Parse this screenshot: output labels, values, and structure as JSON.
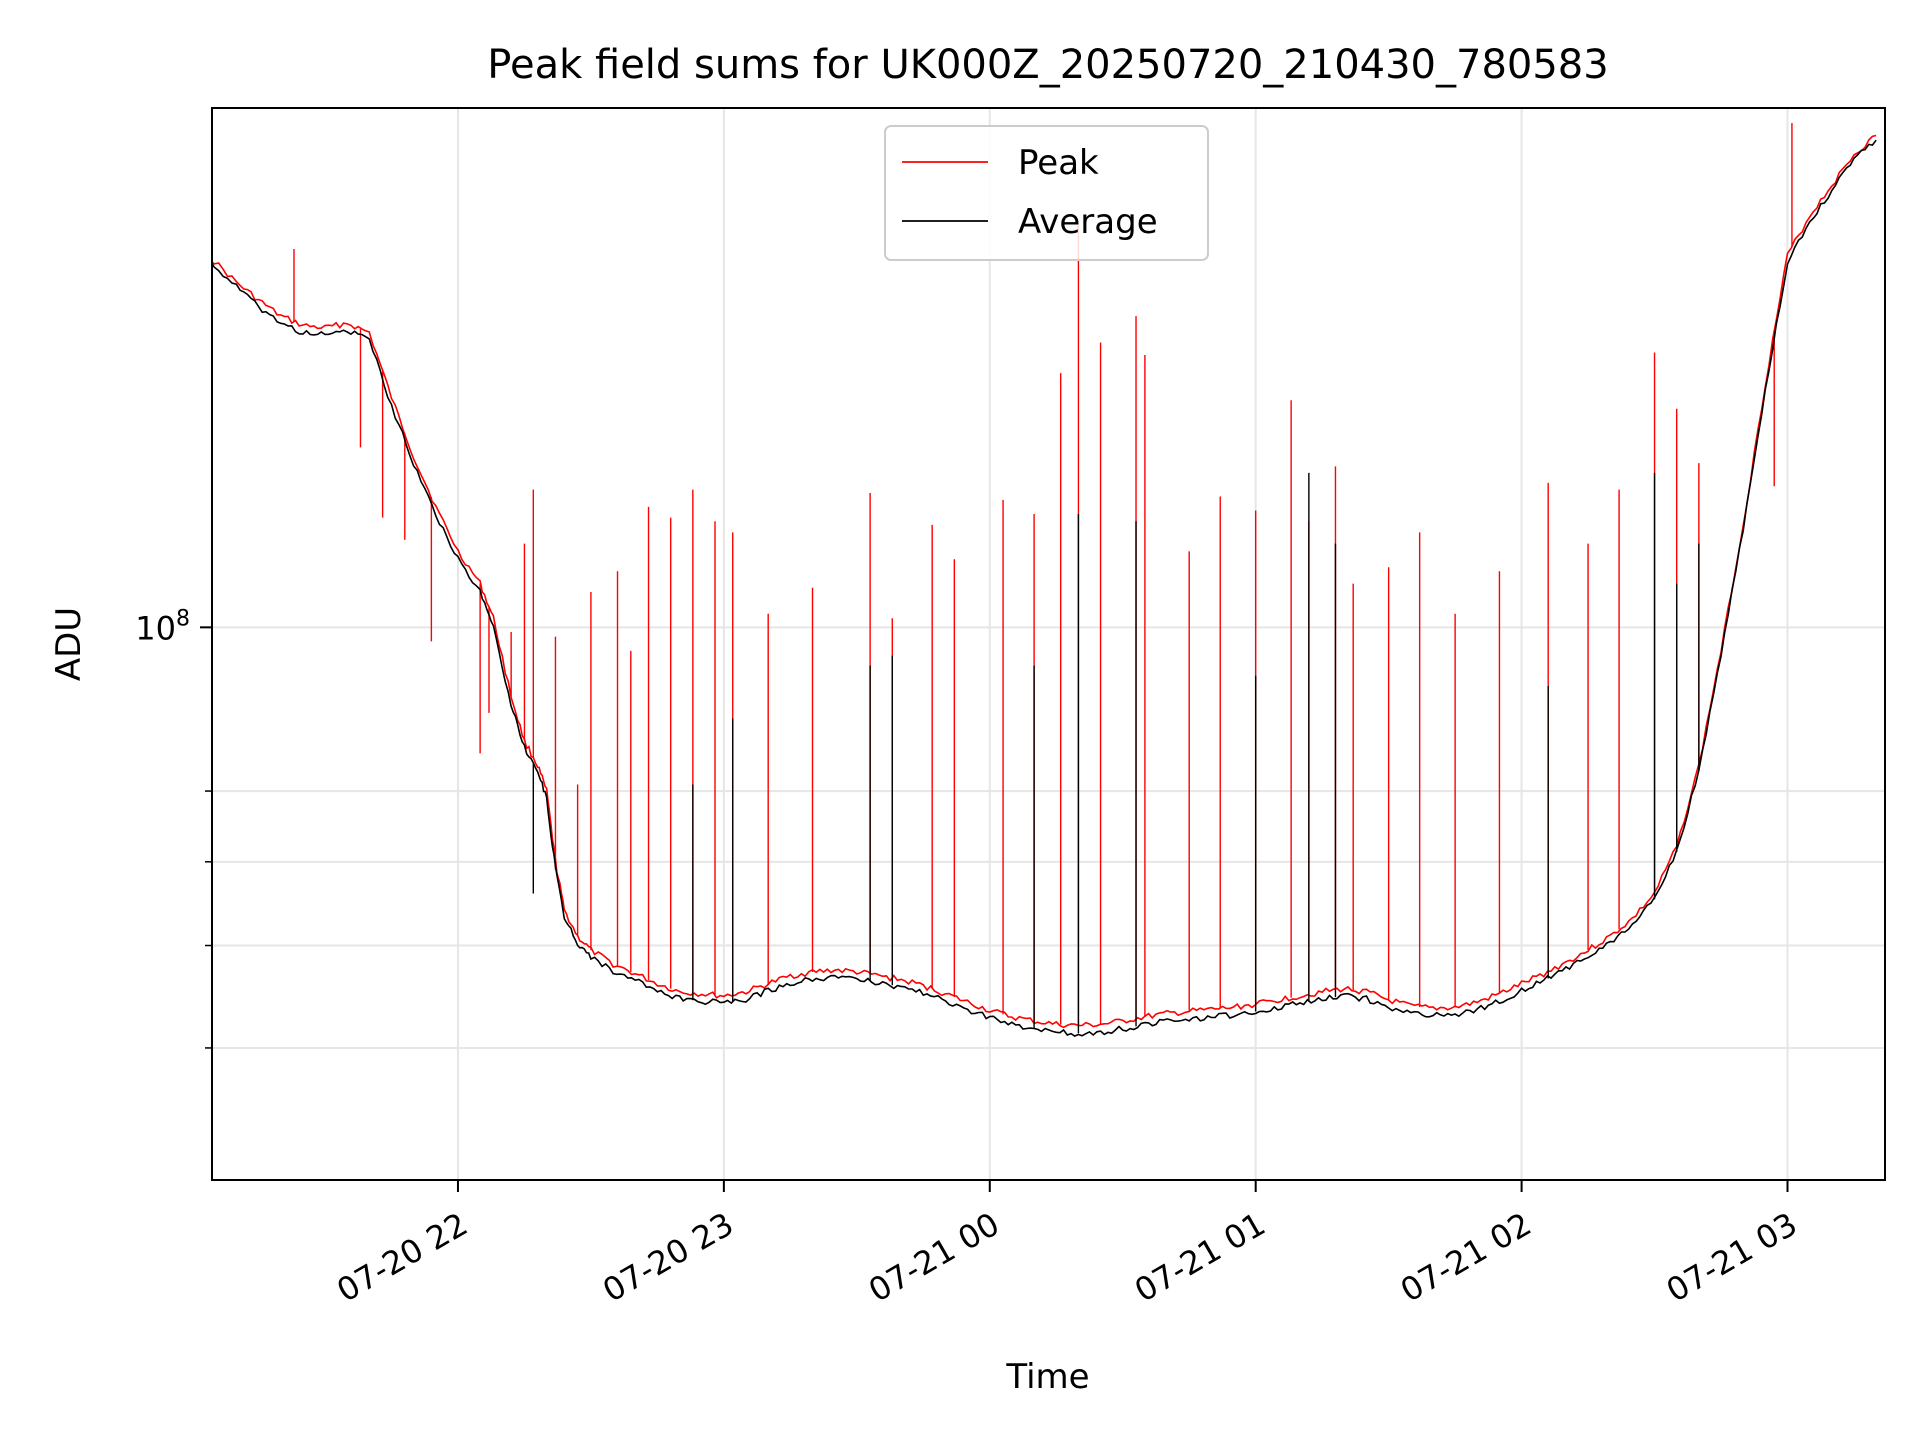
{
  "chart_data": {
    "type": "line",
    "title": "Peak field sums for UK000Z_20250720_210430_780583",
    "xlabel": "Time",
    "ylabel": "ADU",
    "y_scale": "log",
    "x_range": [
      "2025-07-20 21:04:30",
      "2025-07-21 03:22"
    ],
    "ylim_approx": [
      30000000,
      310000000
    ],
    "x_ticks": [
      "07-20 22",
      "07-20 23",
      "07-21 00",
      "07-21 01",
      "07-21 02",
      "07-21 03"
    ],
    "x_tick_times": [
      "2025-07-20 22:00",
      "2025-07-20 23:00",
      "2025-07-21 00:00",
      "2025-07-21 01:00",
      "2025-07-21 02:00",
      "2025-07-21 03:00"
    ],
    "y_major_tick": {
      "label": "10",
      "exponent": "8",
      "value": 100000000
    },
    "y_minor_ticks": [
      40000000,
      50000000,
      60000000,
      70000000
    ],
    "grid": true,
    "legend": {
      "placement": "top-center",
      "entries": [
        "Peak",
        "Average"
      ]
    },
    "series": [
      {
        "name": "Peak",
        "color": "#ff0000",
        "points": [
          [
            "2025-07-20 21:04",
            224000000
          ],
          [
            "2025-07-20 21:10",
            212000000
          ],
          [
            "2025-07-20 21:15",
            204000000
          ],
          [
            "2025-07-20 21:20",
            197000000
          ],
          [
            "2025-07-20 21:25",
            193000000
          ],
          [
            "2025-07-20 21:30",
            192000000
          ],
          [
            "2025-07-20 21:35",
            194000000
          ],
          [
            "2025-07-20 21:40",
            190000000
          ],
          [
            "2025-07-20 21:45",
            165000000
          ],
          [
            "2025-07-20 21:50",
            145000000
          ],
          [
            "2025-07-20 21:55",
            130000000
          ],
          [
            "2025-07-20 22:00",
            118000000
          ],
          [
            "2025-07-20 22:05",
            110000000
          ],
          [
            "2025-07-20 22:08",
            102000000
          ],
          [
            "2025-07-20 22:12",
            86000000
          ],
          [
            "2025-07-20 22:15",
            78000000
          ],
          [
            "2025-07-20 22:18",
            74000000
          ],
          [
            "2025-07-20 22:20",
            70000000
          ],
          [
            "2025-07-20 22:22",
            60000000
          ],
          [
            "2025-07-20 22:24",
            54000000
          ],
          [
            "2025-07-20 22:27",
            51000000
          ],
          [
            "2025-07-20 22:30",
            49500000
          ],
          [
            "2025-07-20 22:35",
            48000000
          ],
          [
            "2025-07-20 22:40",
            47000000
          ],
          [
            "2025-07-20 22:45",
            46000000
          ],
          [
            "2025-07-20 22:50",
            45200000
          ],
          [
            "2025-07-20 22:55",
            45000000
          ],
          [
            "2025-07-20 23:00",
            44800000
          ],
          [
            "2025-07-20 23:05",
            45200000
          ],
          [
            "2025-07-20 23:10",
            46000000
          ],
          [
            "2025-07-20 23:15",
            46800000
          ],
          [
            "2025-07-20 23:20",
            47200000
          ],
          [
            "2025-07-20 23:25",
            47400000
          ],
          [
            "2025-07-20 23:30",
            47200000
          ],
          [
            "2025-07-20 23:35",
            46800000
          ],
          [
            "2025-07-20 23:40",
            46400000
          ],
          [
            "2025-07-20 23:45",
            45800000
          ],
          [
            "2025-07-20 23:50",
            45000000
          ],
          [
            "2025-07-20 23:55",
            44200000
          ],
          [
            "2025-07-21 00:00",
            43400000
          ],
          [
            "2025-07-21 00:05",
            42800000
          ],
          [
            "2025-07-21 00:10",
            42400000
          ],
          [
            "2025-07-21 00:15",
            42100000
          ],
          [
            "2025-07-21 00:20",
            42000000
          ],
          [
            "2025-07-21 00:25",
            42100000
          ],
          [
            "2025-07-21 00:30",
            42400000
          ],
          [
            "2025-07-21 00:35",
            42800000
          ],
          [
            "2025-07-21 00:40",
            43100000
          ],
          [
            "2025-07-21 00:45",
            43300000
          ],
          [
            "2025-07-21 00:50",
            43500000
          ],
          [
            "2025-07-21 00:55",
            43700000
          ],
          [
            "2025-07-21 01:00",
            44000000
          ],
          [
            "2025-07-21 01:05",
            44400000
          ],
          [
            "2025-07-21 01:10",
            44800000
          ],
          [
            "2025-07-21 01:15",
            45200000
          ],
          [
            "2025-07-21 01:20",
            45500000
          ],
          [
            "2025-07-21 01:25",
            45200000
          ],
          [
            "2025-07-21 01:30",
            44400000
          ],
          [
            "2025-07-21 01:35",
            43800000
          ],
          [
            "2025-07-21 01:40",
            43600000
          ],
          [
            "2025-07-21 01:45",
            43700000
          ],
          [
            "2025-07-21 01:50",
            44200000
          ],
          [
            "2025-07-21 01:55",
            45000000
          ],
          [
            "2025-07-21 02:00",
            46000000
          ],
          [
            "2025-07-21 02:05",
            47000000
          ],
          [
            "2025-07-21 02:10",
            48200000
          ],
          [
            "2025-07-21 02:15",
            49500000
          ],
          [
            "2025-07-21 02:20",
            51000000
          ],
          [
            "2025-07-21 02:25",
            53000000
          ],
          [
            "2025-07-21 02:30",
            56000000
          ],
          [
            "2025-07-21 02:35",
            62000000
          ],
          [
            "2025-07-21 02:40",
            74000000
          ],
          [
            "2025-07-21 02:45",
            95000000
          ],
          [
            "2025-07-21 02:50",
            125000000
          ],
          [
            "2025-07-21 02:55",
            170000000
          ],
          [
            "2025-07-21 03:00",
            225000000
          ],
          [
            "2025-07-21 03:05",
            245000000
          ],
          [
            "2025-07-21 03:10",
            262000000
          ],
          [
            "2025-07-21 03:15",
            280000000
          ],
          [
            "2025-07-21 03:20",
            292000000
          ]
        ],
        "spikes": [
          [
            "2025-07-20 21:23",
            228000000
          ],
          [
            "2025-07-20 21:38",
            148000000
          ],
          [
            "2025-07-20 21:43",
            127000000
          ],
          [
            "2025-07-20 21:48",
            121000000
          ],
          [
            "2025-07-20 21:54",
            97000000
          ],
          [
            "2025-07-20 22:05",
            76000000
          ],
          [
            "2025-07-20 22:07",
            83000000
          ],
          [
            "2025-07-20 22:12",
            99000000
          ],
          [
            "2025-07-20 22:15",
            120000000
          ],
          [
            "2025-07-20 22:17",
            135000000
          ],
          [
            "2025-07-20 22:22",
            98000000
          ],
          [
            "2025-07-20 22:27",
            71000000
          ],
          [
            "2025-07-20 22:30",
            108000000
          ],
          [
            "2025-07-20 22:36",
            113000000
          ],
          [
            "2025-07-20 22:39",
            95000000
          ],
          [
            "2025-07-20 22:43",
            130000000
          ],
          [
            "2025-07-20 22:48",
            127000000
          ],
          [
            "2025-07-20 22:53",
            135000000
          ],
          [
            "2025-07-20 22:58",
            126000000
          ],
          [
            "2025-07-20 23:02",
            123000000
          ],
          [
            "2025-07-20 23:10",
            103000000
          ],
          [
            "2025-07-20 23:20",
            109000000
          ],
          [
            "2025-07-20 23:33",
            134000000
          ],
          [
            "2025-07-20 23:38",
            102000000
          ],
          [
            "2025-07-20 23:47",
            125000000
          ],
          [
            "2025-07-20 23:52",
            116000000
          ],
          [
            "2025-07-21 00:03",
            132000000
          ],
          [
            "2025-07-21 00:10",
            128000000
          ],
          [
            "2025-07-21 00:16",
            174000000
          ],
          [
            "2025-07-21 00:20",
            240000000
          ],
          [
            "2025-07-21 00:25",
            186000000
          ],
          [
            "2025-07-21 00:33",
            197000000
          ],
          [
            "2025-07-21 00:35",
            181000000
          ],
          [
            "2025-07-21 00:45",
            118000000
          ],
          [
            "2025-07-21 00:52",
            133000000
          ],
          [
            "2025-07-21 01:00",
            129000000
          ],
          [
            "2025-07-21 01:08",
            164000000
          ],
          [
            "2025-07-21 01:12",
            126000000
          ],
          [
            "2025-07-21 01:18",
            142000000
          ],
          [
            "2025-07-21 01:22",
            110000000
          ],
          [
            "2025-07-21 01:30",
            114000000
          ],
          [
            "2025-07-21 01:37",
            123000000
          ],
          [
            "2025-07-21 01:45",
            103000000
          ],
          [
            "2025-07-21 01:55",
            113000000
          ],
          [
            "2025-07-21 02:06",
            137000000
          ],
          [
            "2025-07-21 02:15",
            120000000
          ],
          [
            "2025-07-21 02:22",
            135000000
          ],
          [
            "2025-07-21 02:30",
            182000000
          ],
          [
            "2025-07-21 02:35",
            161000000
          ],
          [
            "2025-07-21 02:40",
            143000000
          ],
          [
            "2025-07-21 02:57",
            136000000
          ],
          [
            "2025-07-21 03:01",
            300000000
          ]
        ]
      },
      {
        "name": "Average",
        "color": "#000000",
        "points": [
          [
            "2025-07-20 21:04",
            222000000
          ],
          [
            "2025-07-20 21:10",
            210000000
          ],
          [
            "2025-07-20 21:15",
            201000000
          ],
          [
            "2025-07-20 21:20",
            194000000
          ],
          [
            "2025-07-20 21:25",
            190000000
          ],
          [
            "2025-07-20 21:30",
            189000000
          ],
          [
            "2025-07-20 21:35",
            191000000
          ],
          [
            "2025-07-20 21:40",
            187000000
          ],
          [
            "2025-07-20 21:45",
            162000000
          ],
          [
            "2025-07-20 21:50",
            143000000
          ],
          [
            "2025-07-20 21:55",
            128000000
          ],
          [
            "2025-07-20 22:00",
            116000000
          ],
          [
            "2025-07-20 22:05",
            108000000
          ],
          [
            "2025-07-20 22:08",
            100000000
          ],
          [
            "2025-07-20 22:12",
            84500000
          ],
          [
            "2025-07-20 22:15",
            77000000
          ],
          [
            "2025-07-20 22:18",
            73000000
          ],
          [
            "2025-07-20 22:20",
            69000000
          ],
          [
            "2025-07-20 22:22",
            59000000
          ],
          [
            "2025-07-20 22:24",
            53200000
          ],
          [
            "2025-07-20 22:27",
            50300000
          ],
          [
            "2025-07-20 22:30",
            48800000
          ],
          [
            "2025-07-20 22:35",
            47300000
          ],
          [
            "2025-07-20 22:40",
            46300000
          ],
          [
            "2025-07-20 22:45",
            45300000
          ],
          [
            "2025-07-20 22:50",
            44500000
          ],
          [
            "2025-07-20 22:55",
            44300000
          ],
          [
            "2025-07-20 23:00",
            44100000
          ],
          [
            "2025-07-20 23:05",
            44500000
          ],
          [
            "2025-07-20 23:10",
            45300000
          ],
          [
            "2025-07-20 23:15",
            46100000
          ],
          [
            "2025-07-20 23:20",
            46500000
          ],
          [
            "2025-07-20 23:25",
            46700000
          ],
          [
            "2025-07-20 23:30",
            46500000
          ],
          [
            "2025-07-20 23:35",
            46100000
          ],
          [
            "2025-07-20 23:40",
            45700000
          ],
          [
            "2025-07-20 23:45",
            45100000
          ],
          [
            "2025-07-20 23:50",
            44300000
          ],
          [
            "2025-07-20 23:55",
            43500000
          ],
          [
            "2025-07-21 00:00",
            42700000
          ],
          [
            "2025-07-21 00:05",
            42100000
          ],
          [
            "2025-07-21 00:10",
            41700000
          ],
          [
            "2025-07-21 00:15",
            41400000
          ],
          [
            "2025-07-21 00:20",
            41300000
          ],
          [
            "2025-07-21 00:25",
            41400000
          ],
          [
            "2025-07-21 00:30",
            41700000
          ],
          [
            "2025-07-21 00:35",
            42100000
          ],
          [
            "2025-07-21 00:40",
            42400000
          ],
          [
            "2025-07-21 00:45",
            42600000
          ],
          [
            "2025-07-21 00:50",
            42800000
          ],
          [
            "2025-07-21 00:55",
            43000000
          ],
          [
            "2025-07-21 01:00",
            43300000
          ],
          [
            "2025-07-21 01:05",
            43700000
          ],
          [
            "2025-07-21 01:10",
            44100000
          ],
          [
            "2025-07-21 01:15",
            44500000
          ],
          [
            "2025-07-21 01:20",
            44800000
          ],
          [
            "2025-07-21 01:25",
            44500000
          ],
          [
            "2025-07-21 01:30",
            43700000
          ],
          [
            "2025-07-21 01:35",
            43100000
          ],
          [
            "2025-07-21 01:40",
            42900000
          ],
          [
            "2025-07-21 01:45",
            43000000
          ],
          [
            "2025-07-21 01:50",
            43500000
          ],
          [
            "2025-07-21 01:55",
            44300000
          ],
          [
            "2025-07-21 02:00",
            45300000
          ],
          [
            "2025-07-21 02:05",
            46300000
          ],
          [
            "2025-07-21 02:10",
            47500000
          ],
          [
            "2025-07-21 02:15",
            48800000
          ],
          [
            "2025-07-21 02:20",
            50300000
          ],
          [
            "2025-07-21 02:25",
            52300000
          ],
          [
            "2025-07-21 02:30",
            55300000
          ],
          [
            "2025-07-21 02:35",
            61300000
          ],
          [
            "2025-07-21 02:40",
            73300000
          ],
          [
            "2025-07-21 02:45",
            94000000
          ],
          [
            "2025-07-21 02:50",
            124000000
          ],
          [
            "2025-07-21 02:55",
            168000000
          ],
          [
            "2025-07-21 03:00",
            222000000
          ],
          [
            "2025-07-21 03:05",
            242000000
          ],
          [
            "2025-07-21 03:10",
            259000000
          ],
          [
            "2025-07-21 03:15",
            277000000
          ],
          [
            "2025-07-21 03:20",
            289000000
          ]
        ],
        "spikes": [
          [
            "2025-07-20 22:17",
            56000000
          ],
          [
            "2025-07-20 22:22",
            60000000
          ],
          [
            "2025-07-20 22:53",
            71000000
          ],
          [
            "2025-07-20 23:02",
            82000000
          ],
          [
            "2025-07-20 23:33",
            92000000
          ],
          [
            "2025-07-20 23:38",
            94000000
          ],
          [
            "2025-07-21 00:10",
            92000000
          ],
          [
            "2025-07-21 00:20",
            128000000
          ],
          [
            "2025-07-21 00:33",
            126000000
          ],
          [
            "2025-07-21 01:00",
            90000000
          ],
          [
            "2025-07-21 01:12",
            140000000
          ],
          [
            "2025-07-21 01:18",
            120000000
          ],
          [
            "2025-07-21 02:06",
            88000000
          ],
          [
            "2025-07-21 02:30",
            140000000
          ],
          [
            "2025-07-21 02:35",
            110000000
          ],
          [
            "2025-07-21 02:40",
            120000000
          ]
        ]
      }
    ]
  }
}
